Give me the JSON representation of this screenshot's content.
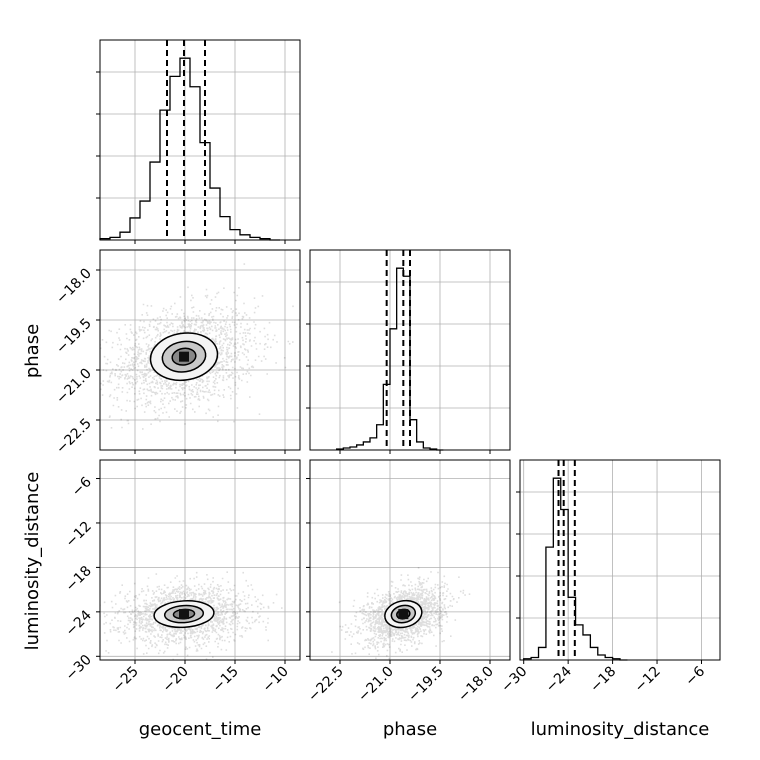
{
  "chart_data": {
    "type": "corner",
    "parameters": [
      "geocent_time",
      "phase",
      "luminosity_distance"
    ],
    "axis_labels": {
      "x": [
        "geocent_time",
        "phase",
        "luminosity_distance"
      ],
      "y": [
        "phase",
        "luminosity_distance"
      ]
    },
    "ranges": {
      "geocent_time": [
        -28.5,
        -8.5
      ],
      "phase": [
        -23.4,
        -17.4
      ],
      "luminosity_distance": [
        -30.5,
        -3.5
      ]
    },
    "ticks": {
      "geocent_time": {
        "values": [
          -25,
          -20,
          -15,
          -10
        ],
        "labels": [
          "−25",
          "−20",
          "−15",
          "−10"
        ]
      },
      "phase": {
        "values": [
          -22.5,
          -21.0,
          -19.5,
          -18.0
        ],
        "labels": [
          "−22.5",
          "−21.0",
          "−19.5",
          "−18.0"
        ]
      },
      "luminosity_distance": {
        "values": [
          -30,
          -24,
          -18,
          -12,
          -6
        ],
        "labels": [
          "−30",
          "−24",
          "−18",
          "−12",
          "−6"
        ]
      }
    },
    "grid": true,
    "histograms": [
      {
        "parameter": "geocent_time",
        "bin_edges": [
          -28.5,
          -27.5,
          -26.5,
          -25.5,
          -24.5,
          -23.5,
          -22.5,
          -21.5,
          -20.5,
          -19.5,
          -18.5,
          -17.5,
          -16.5,
          -15.5,
          -14.5,
          -13.5,
          -12.5,
          -11.5,
          -10.5
        ],
        "counts": [
          1,
          2,
          6,
          17,
          30,
          60,
          100,
          126,
          140,
          118,
          75,
          40,
          18,
          8,
          4,
          2,
          1,
          0
        ],
        "quantiles": [
          -21.8,
          -20.1,
          -18.0
        ]
      },
      {
        "parameter": "phase",
        "bin_edges": [
          -22.6,
          -22.4,
          -22.2,
          -22.0,
          -21.8,
          -21.6,
          -21.4,
          -21.2,
          -21.0,
          -20.8,
          -20.6,
          -20.4,
          -20.2,
          -20.0,
          -19.8,
          -19.6,
          -19.4
        ],
        "counts": [
          1,
          2,
          3,
          5,
          8,
          12,
          25,
          65,
          120,
          180,
          172,
          30,
          8,
          2,
          1,
          0
        ],
        "quantiles": [
          -21.1,
          -20.6,
          -20.4
        ]
      },
      {
        "parameter": "luminosity_distance",
        "bin_edges": [
          -30.0,
          -29.0,
          -28.0,
          -27.0,
          -26.0,
          -25.0,
          -24.0,
          -23.0,
          -22.0,
          -21.0,
          -20.0,
          -19.0,
          -18.0,
          -17.0,
          -16.0
        ],
        "counts": [
          1,
          2,
          10,
          90,
          145,
          120,
          50,
          28,
          20,
          10,
          4,
          2,
          1,
          0
        ],
        "quantiles": [
          -25.3,
          -24.6,
          -23.1
        ]
      }
    ],
    "density_2d": [
      {
        "x": "geocent_time",
        "y": "phase",
        "center": [
          -20.1,
          -20.6
        ],
        "sigma": [
          3.6,
          0.75
        ],
        "points": 1800,
        "rho": 0.25
      },
      {
        "x": "geocent_time",
        "y": "luminosity_distance",
        "center": [
          -20.1,
          -24.3
        ],
        "sigma": [
          3.2,
          1.9
        ],
        "points": 1800,
        "rho": 0.1
      },
      {
        "x": "phase",
        "y": "luminosity_distance",
        "center": [
          -20.6,
          -24.3
        ],
        "sigma": [
          0.6,
          1.9
        ],
        "points": 1800,
        "rho": 0.35
      }
    ]
  }
}
